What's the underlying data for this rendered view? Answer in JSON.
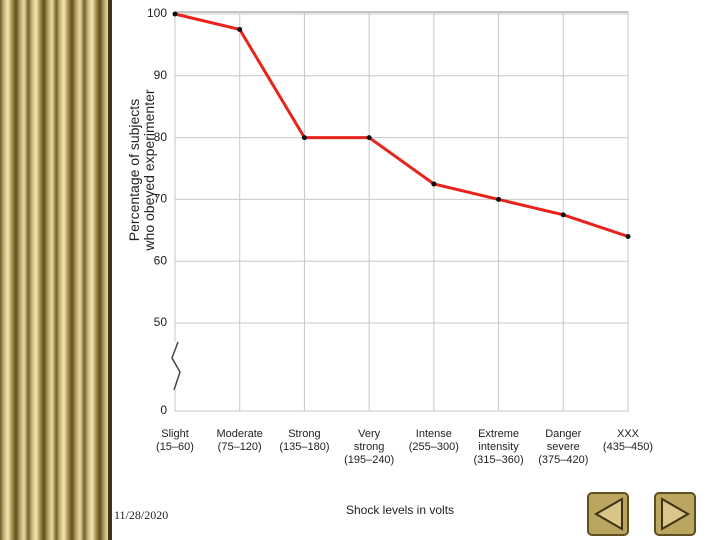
{
  "chart_data": {
    "type": "line",
    "y_label": "Percentage of subjects\nwho obeyed experimenter",
    "x_label": "Shock levels in volts",
    "categories": [
      "Slight\n(15–60)",
      "Moderate\n(75–120)",
      "Strong\n(135–180)",
      "Very\nstrong\n(195–240)",
      "Intense\n(255–300)",
      "Extreme\nintensity\n(315–360)",
      "Danger\nsevere\n(375–420)",
      "XXX\n(435–450)"
    ],
    "values": [
      100,
      97.5,
      80,
      80,
      72.5,
      70,
      67.5,
      64
    ],
    "color": "#e8231c",
    "ylim": [
      0,
      100
    ],
    "yticks": [
      0,
      50,
      60,
      70,
      80,
      90,
      100
    ],
    "axis_break": [
      0,
      50
    ],
    "grid": true
  },
  "footer": {
    "date": "11/28/2020"
  }
}
